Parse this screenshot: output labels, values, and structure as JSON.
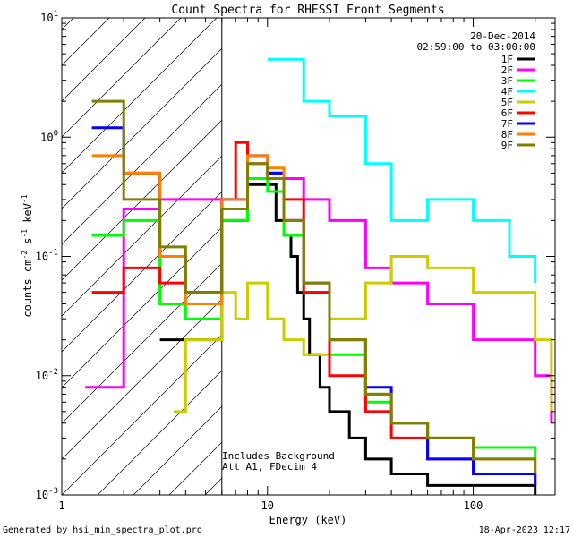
{
  "chart_data": {
    "type": "line",
    "title": "Count Spectra for RHESSI Front Segments",
    "xlabel": "Energy (keV)",
    "ylabel_parts": {
      "base": "counts cm",
      "exp1": "-2",
      "mid1": " s",
      "exp2": "-1",
      "mid2": " keV",
      "exp3": "-1"
    },
    "xscale": "log",
    "yscale": "log",
    "xlim": [
      1,
      250
    ],
    "ylim": [
      0.001,
      10
    ],
    "x_ticks": [
      {
        "value": 1,
        "label": "1"
      },
      {
        "value": 10,
        "label": "10"
      },
      {
        "value": 100,
        "label": "100"
      }
    ],
    "y_ticks": [
      {
        "value": 10,
        "base": "10",
        "exp": "1"
      },
      {
        "value": 1,
        "base": "10",
        "exp": "0"
      },
      {
        "value": 0.1,
        "base": "10",
        "exp": "-1"
      },
      {
        "value": 0.01,
        "base": "10",
        "exp": "-2"
      },
      {
        "value": 0.001,
        "base": "10",
        "exp": "-3"
      }
    ],
    "date": "20-Dec-2014",
    "time_range": "02:59:00 to 03:00:00",
    "annotations": [
      "Includes Background",
      "Att A1, FDecim 4"
    ],
    "hatched_region": {
      "x_from": 1,
      "x_to": 6
    },
    "legend_position": "top-right",
    "series": [
      {
        "name": "1F",
        "color": "#000000",
        "x": [
          3,
          6,
          8,
          10,
          11,
          12,
          13,
          14,
          15,
          16,
          18,
          20,
          25,
          30,
          40,
          60,
          100,
          200
        ],
        "y": [
          0.02,
          0.2,
          0.4,
          0.4,
          0.2,
          0.15,
          0.1,
          0.05,
          0.03,
          0.015,
          0.008,
          0.005,
          0.003,
          0.002,
          0.0015,
          0.0012,
          0.0012,
          0.001
        ]
      },
      {
        "name": "2F",
        "color": "#ff00ff",
        "x": [
          1.3,
          2,
          3,
          5,
          6,
          8,
          10,
          12,
          15,
          20,
          30,
          40,
          60,
          100,
          200,
          240
        ],
        "y": [
          0.008,
          0.25,
          0.3,
          0.3,
          0.25,
          0.45,
          0.5,
          0.45,
          0.3,
          0.2,
          0.08,
          0.06,
          0.04,
          0.02,
          0.01,
          0.004
        ]
      },
      {
        "name": "3F",
        "color": "#00ff00",
        "x": [
          1.4,
          2,
          3,
          4,
          6,
          8,
          10,
          12,
          15,
          20,
          30,
          40,
          60,
          100,
          200
        ],
        "y": [
          0.15,
          0.2,
          0.04,
          0.03,
          0.2,
          0.45,
          0.35,
          0.15,
          0.05,
          0.015,
          0.006,
          0.004,
          0.003,
          0.0025,
          0.002
        ]
      },
      {
        "name": "4F",
        "color": "#00ffff",
        "x": [
          10,
          15,
          20,
          30,
          40,
          60,
          100,
          150,
          200
        ],
        "y": [
          4.5,
          2,
          1.5,
          0.6,
          0.2,
          0.3,
          0.2,
          0.1,
          0.06
        ]
      },
      {
        "name": "5F",
        "color": "#cccc00",
        "x": [
          3.5,
          4,
          6,
          7,
          8,
          10,
          12,
          15,
          20,
          30,
          40,
          60,
          100,
          200,
          240
        ],
        "y": [
          0.005,
          0.02,
          0.05,
          0.03,
          0.06,
          0.03,
          0.02,
          0.015,
          0.03,
          0.06,
          0.1,
          0.08,
          0.05,
          0.02,
          0.005
        ]
      },
      {
        "name": "6F",
        "color": "#ff0000",
        "x": [
          1.4,
          2,
          3,
          4,
          6,
          7,
          8,
          10,
          12,
          15,
          20,
          30,
          40,
          60,
          100,
          200
        ],
        "y": [
          0.05,
          0.08,
          0.06,
          0.05,
          0.3,
          0.9,
          0.6,
          0.5,
          0.3,
          0.05,
          0.01,
          0.005,
          0.003,
          0.002,
          0.0015,
          0.0012
        ]
      },
      {
        "name": "7F",
        "color": "#0000ff",
        "x": [
          1.4,
          2,
          3,
          4,
          6,
          8,
          10,
          12,
          15,
          20,
          30,
          40,
          60,
          100,
          200
        ],
        "y": [
          1.2,
          0.5,
          0.1,
          0.05,
          0.3,
          0.7,
          0.5,
          0.2,
          0.06,
          0.02,
          0.008,
          0.004,
          0.002,
          0.0015,
          0.0012
        ]
      },
      {
        "name": "8F",
        "color": "#ff8000",
        "x": [
          1.4,
          2,
          3,
          4,
          6,
          8,
          10,
          12,
          15,
          20,
          30,
          40,
          60,
          100,
          200
        ],
        "y": [
          0.7,
          0.5,
          0.1,
          0.04,
          0.3,
          0.7,
          0.55,
          0.2,
          0.06,
          0.02,
          0.007,
          0.004,
          0.003,
          0.002,
          0.0015
        ]
      },
      {
        "name": "9F",
        "color": "#808000",
        "x": [
          1.4,
          2,
          3,
          4,
          6,
          8,
          10,
          12,
          15,
          20,
          30,
          40,
          60,
          100,
          200
        ],
        "y": [
          2,
          0.3,
          0.12,
          0.05,
          0.25,
          0.6,
          0.45,
          0.2,
          0.06,
          0.02,
          0.007,
          0.004,
          0.003,
          0.002,
          0.0015
        ]
      }
    ]
  },
  "footer": {
    "generated_by": "Generated by hsi_min_spectra_plot.pro",
    "timestamp": "18-Apr-2023 12:17"
  }
}
